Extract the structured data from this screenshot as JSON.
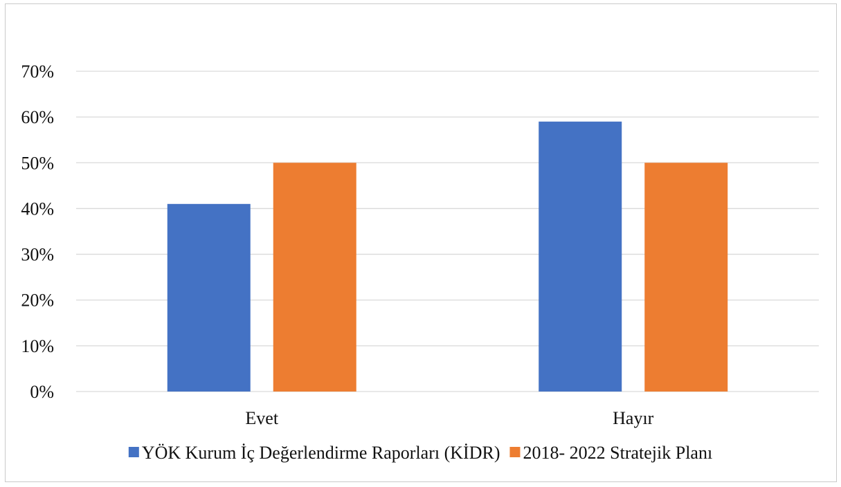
{
  "chart_data": {
    "type": "bar",
    "categories": [
      "Evet",
      "Hayır"
    ],
    "series": [
      {
        "name": "YÖK Kurum İç Değerlendirme Raporları (KİDR)",
        "values": [
          0.41,
          0.59
        ],
        "color": "#4472C4"
      },
      {
        "name": "2018- 2022 Stratejik Planı",
        "values": [
          0.5,
          0.5
        ],
        "color": "#ED7D31"
      }
    ],
    "y_ticks": [
      "0%",
      "10%",
      "20%",
      "30%",
      "40%",
      "50%",
      "60%",
      "70%"
    ],
    "ylim": [
      0,
      0.7
    ],
    "grid": true,
    "legend_position": "bottom",
    "gridline_color": "#d9d9d9"
  }
}
